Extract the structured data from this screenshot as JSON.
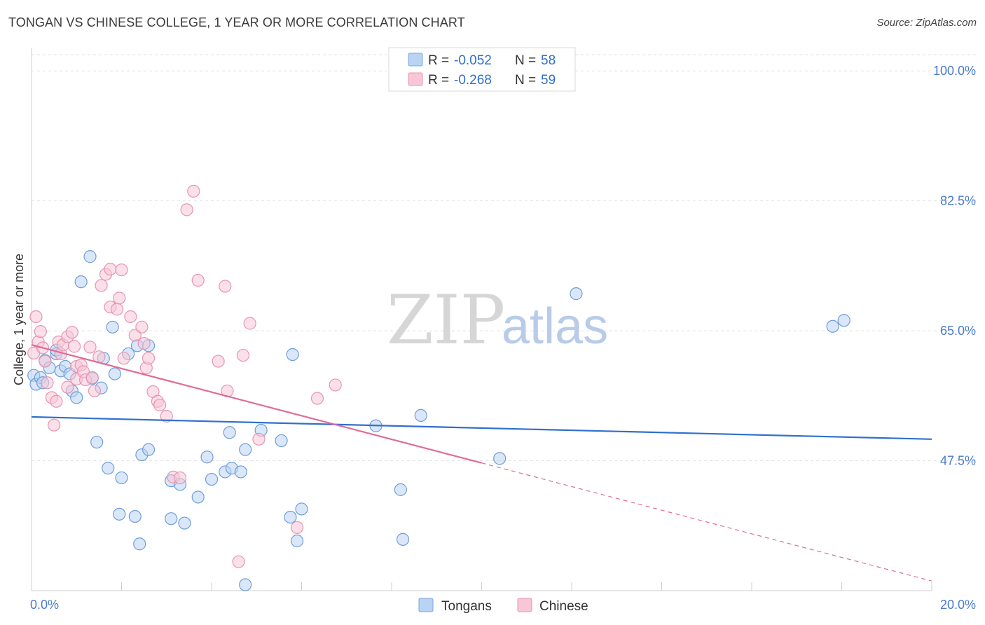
{
  "header": {
    "title": "TONGAN VS CHINESE COLLEGE, 1 YEAR OR MORE CORRELATION CHART",
    "source": "Source: ZipAtlas.com"
  },
  "watermark": {
    "zip": "ZIP",
    "atlas": "atlas"
  },
  "legend": {
    "rows": [
      {
        "r_label": "R =",
        "r_value": "-0.052",
        "n_label": "N =",
        "n_value": "58",
        "color": "#b9d3f3",
        "stroke": "#7aa6de"
      },
      {
        "r_label": "R =",
        "r_value": "-0.268",
        "n_label": "N =",
        "n_value": "59",
        "color": "#f8c6d6",
        "stroke": "#e895b2"
      }
    ]
  },
  "bottom_legend": {
    "items": [
      "Tongans",
      "Chinese"
    ]
  },
  "chart_data": {
    "type": "scatter",
    "ylabel": "College, 1 year or more",
    "xlim": [
      0,
      20
    ],
    "ylim": [
      30,
      102
    ],
    "x_tick_labels": [
      "0.0%",
      "20.0%"
    ],
    "y_ticks": [
      100,
      82.5,
      65,
      47.5
    ],
    "y_tick_labels": [
      "100.0%",
      "82.5%",
      "65.0%",
      "47.5%"
    ],
    "grid": true,
    "series": [
      {
        "name": "Tongans",
        "color": "#b9d3f3",
        "stroke": "#6f9edb",
        "line_color": "#2f6fce",
        "trend": {
          "x": [
            0,
            20
          ],
          "y": [
            53.4,
            50.4
          ],
          "dashed_from": null
        },
        "points": [
          [
            0.05,
            59.0
          ],
          [
            0.1,
            57.8
          ],
          [
            0.2,
            58.7
          ],
          [
            0.25,
            58.0
          ],
          [
            0.3,
            61.0
          ],
          [
            0.4,
            60.0
          ],
          [
            0.55,
            61.9
          ],
          [
            0.55,
            62.4
          ],
          [
            0.65,
            59.6
          ],
          [
            0.75,
            60.2
          ],
          [
            0.85,
            59.2
          ],
          [
            0.9,
            56.9
          ],
          [
            1.0,
            56.0
          ],
          [
            1.1,
            71.6
          ],
          [
            1.3,
            75.0
          ],
          [
            1.35,
            58.6
          ],
          [
            1.45,
            50.0
          ],
          [
            1.55,
            57.3
          ],
          [
            1.6,
            61.3
          ],
          [
            1.7,
            46.5
          ],
          [
            1.8,
            65.5
          ],
          [
            1.85,
            59.2
          ],
          [
            2.0,
            45.2
          ],
          [
            2.15,
            61.9
          ],
          [
            2.35,
            63.0
          ],
          [
            2.6,
            63.0
          ],
          [
            2.45,
            48.3
          ],
          [
            2.6,
            49.0
          ],
          [
            1.95,
            40.3
          ],
          [
            2.3,
            40.0
          ],
          [
            2.4,
            36.3
          ],
          [
            3.1,
            44.8
          ],
          [
            3.3,
            44.3
          ],
          [
            3.1,
            39.7
          ],
          [
            3.4,
            39.1
          ],
          [
            3.7,
            42.6
          ],
          [
            3.9,
            48.0
          ],
          [
            4.0,
            45.0
          ],
          [
            4.3,
            46.0
          ],
          [
            4.45,
            46.5
          ],
          [
            4.4,
            51.3
          ],
          [
            4.65,
            46.0
          ],
          [
            4.75,
            49.0
          ],
          [
            5.1,
            51.6
          ],
          [
            4.75,
            30.8
          ],
          [
            5.55,
            50.2
          ],
          [
            5.75,
            39.9
          ],
          [
            5.9,
            36.7
          ],
          [
            6.0,
            41.0
          ],
          [
            5.8,
            61.8
          ],
          [
            7.65,
            52.2
          ],
          [
            8.2,
            43.6
          ],
          [
            8.25,
            36.9
          ],
          [
            8.65,
            53.6
          ],
          [
            10.4,
            47.8
          ],
          [
            12.1,
            70.0
          ],
          [
            17.8,
            65.6
          ],
          [
            18.05,
            66.4
          ]
        ]
      },
      {
        "name": "Chinese",
        "color": "#f8c6d6",
        "stroke": "#e795b3",
        "line_color": "#e06b97",
        "trend": {
          "x": [
            0,
            20
          ],
          "y": [
            63.1,
            31.3
          ],
          "dashed_from": 10.0
        },
        "points": [
          [
            0.05,
            62.0
          ],
          [
            0.1,
            66.9
          ],
          [
            0.15,
            63.5
          ],
          [
            0.2,
            64.9
          ],
          [
            0.25,
            62.7
          ],
          [
            0.3,
            60.9
          ],
          [
            0.35,
            58.0
          ],
          [
            0.45,
            56.0
          ],
          [
            0.5,
            52.3
          ],
          [
            0.55,
            55.5
          ],
          [
            0.6,
            63.5
          ],
          [
            0.65,
            61.9
          ],
          [
            0.7,
            63.1
          ],
          [
            0.8,
            64.2
          ],
          [
            0.8,
            57.4
          ],
          [
            0.9,
            64.8
          ],
          [
            0.95,
            62.9
          ],
          [
            1.0,
            60.2
          ],
          [
            1.0,
            58.5
          ],
          [
            1.1,
            60.4
          ],
          [
            1.15,
            59.5
          ],
          [
            1.2,
            58.4
          ],
          [
            1.3,
            62.8
          ],
          [
            1.35,
            58.7
          ],
          [
            1.4,
            56.9
          ],
          [
            1.5,
            61.5
          ],
          [
            1.55,
            71.1
          ],
          [
            1.65,
            72.6
          ],
          [
            1.75,
            73.3
          ],
          [
            1.75,
            68.2
          ],
          [
            1.9,
            67.9
          ],
          [
            1.95,
            69.4
          ],
          [
            2.0,
            73.2
          ],
          [
            2.05,
            61.3
          ],
          [
            2.2,
            66.9
          ],
          [
            2.3,
            64.4
          ],
          [
            2.45,
            65.5
          ],
          [
            2.5,
            63.3
          ],
          [
            2.55,
            60.0
          ],
          [
            2.6,
            61.3
          ],
          [
            2.7,
            56.8
          ],
          [
            2.8,
            55.5
          ],
          [
            2.85,
            55.0
          ],
          [
            3.0,
            53.5
          ],
          [
            3.15,
            45.3
          ],
          [
            3.3,
            45.2
          ],
          [
            3.45,
            81.3
          ],
          [
            3.6,
            83.8
          ],
          [
            3.7,
            71.8
          ],
          [
            4.15,
            60.9
          ],
          [
            4.3,
            71.0
          ],
          [
            4.35,
            56.9
          ],
          [
            4.6,
            33.9
          ],
          [
            4.7,
            61.7
          ],
          [
            4.85,
            66.0
          ],
          [
            5.05,
            50.4
          ],
          [
            5.9,
            38.5
          ],
          [
            6.35,
            55.9
          ],
          [
            6.75,
            57.7
          ]
        ]
      }
    ]
  }
}
